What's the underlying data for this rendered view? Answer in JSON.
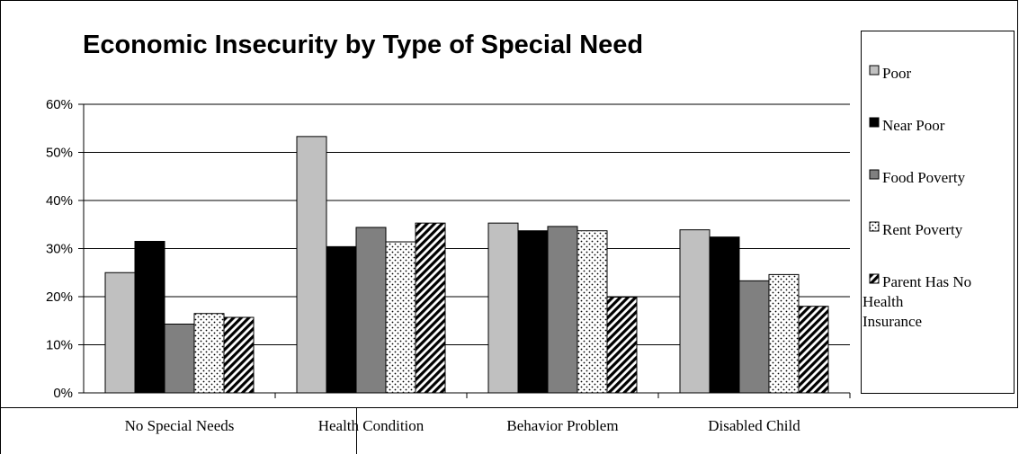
{
  "chart_data": {
    "type": "bar",
    "title": "Economic Insecurity by Type of Special Need",
    "categories": [
      "No Special Needs",
      "Health Condition",
      "Behavior Problem",
      "Disabled Child"
    ],
    "series": [
      {
        "name": "Poor",
        "values": [
          25,
          53.3,
          35.3,
          33.9
        ],
        "color": "#c0c0c0",
        "pattern": "solid"
      },
      {
        "name": "Near Poor",
        "values": [
          31.5,
          30.4,
          33.7,
          32.4
        ],
        "color": "#000000",
        "pattern": "solid"
      },
      {
        "name": "Food Poverty",
        "values": [
          14.3,
          34.4,
          34.6,
          23.3
        ],
        "color": "#808080",
        "pattern": "solid"
      },
      {
        "name": "Rent Poverty",
        "values": [
          16.5,
          31.4,
          33.7,
          24.6
        ],
        "color": "#ffffff",
        "pattern": "dots"
      },
      {
        "name": "Parent Has No Health Insurance",
        "values": [
          15.7,
          35.3,
          19.9,
          18
        ],
        "color": "#ffffff",
        "pattern": "diagonal-stripes"
      }
    ],
    "yticks": [
      "0%",
      "10%",
      "20%",
      "30%",
      "40%",
      "50%",
      "60%"
    ],
    "ylim": [
      0,
      60
    ],
    "grid": true,
    "legend_position": "right"
  }
}
